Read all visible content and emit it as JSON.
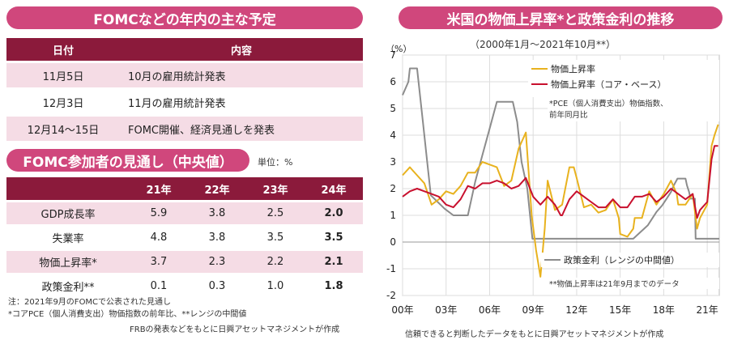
{
  "left": {
    "schedule_title": "FOMCなどの年内の主な予定",
    "schedule_headers": [
      "日付",
      "内容"
    ],
    "schedule_rows": [
      {
        "date": "11月5日",
        "content": "10月の雇用統計発表"
      },
      {
        "date": "12月3日",
        "content": "11月の雇用統計発表"
      },
      {
        "date": "12月14～15日",
        "content": "FOMC開催、経済見通しを発表"
      }
    ],
    "forecast_title": "FOMC参加者の見通し（中央値）",
    "forecast_unit": "単位：%",
    "forecast_headers": [
      "",
      "21年",
      "22年",
      "23年",
      "24年"
    ],
    "forecast_rows": [
      {
        "label": "GDP成長率",
        "values": [
          "5.9",
          "3.8",
          "2.5",
          "2.0"
        ]
      },
      {
        "label": "失業率",
        "values": [
          "4.8",
          "3.8",
          "3.5",
          "3.5"
        ]
      },
      {
        "label": "物価上昇率*",
        "values": [
          "3.7",
          "2.3",
          "2.2",
          "2.1"
        ]
      },
      {
        "label": "政策金利**",
        "values": [
          "0.1",
          "0.3",
          "1.0",
          "1.8"
        ]
      }
    ],
    "note1": "注：2021年9月のFOMCで公表された見通し",
    "note2": "*コアPCE（個人消費支出）物価指数の前年比、**レンジの中間値",
    "source": "FRBの発表などをもとに日興アセットマネジメントが作成"
  },
  "chart_data": {
    "type": "line",
    "title": "米国の物価上昇率*と政策金利の推移",
    "subtitle": "（2000年1月～2021年10月**）",
    "ylabel": "（%）",
    "ylim": [
      -2,
      7
    ],
    "yticks": [
      -2,
      -1,
      0,
      1,
      2,
      3,
      4,
      5,
      6,
      7
    ],
    "xlim": [
      2000,
      2021.83
    ],
    "xticks": [
      {
        "x": 2000,
        "label": "00年"
      },
      {
        "x": 2003,
        "label": "03年"
      },
      {
        "x": 2006,
        "label": "06年"
      },
      {
        "x": 2009,
        "label": "09年"
      },
      {
        "x": 2012,
        "label": "12年"
      },
      {
        "x": 2015,
        "label": "15年"
      },
      {
        "x": 2018,
        "label": "18年"
      },
      {
        "x": 2021,
        "label": "21年"
      }
    ],
    "grid": true,
    "series": [
      {
        "name": "物価上昇率",
        "color": "#e8b21e",
        "points": [
          [
            2000,
            2.5
          ],
          [
            2000.5,
            2.8
          ],
          [
            2001,
            2.5
          ],
          [
            2001.5,
            2.2
          ],
          [
            2002,
            1.4
          ],
          [
            2002.5,
            1.6
          ],
          [
            2003,
            1.9
          ],
          [
            2003.5,
            1.8
          ],
          [
            2004,
            2.1
          ],
          [
            2004.5,
            2.6
          ],
          [
            2005,
            2.6
          ],
          [
            2005.5,
            3.0
          ],
          [
            2006,
            2.9
          ],
          [
            2006.5,
            2.8
          ],
          [
            2007,
            2.1
          ],
          [
            2007.5,
            2.3
          ],
          [
            2008,
            3.5
          ],
          [
            2008.5,
            4.1
          ],
          [
            2008.9,
            1.0
          ],
          [
            2009.2,
            -0.3
          ],
          [
            2009.5,
            -1.3
          ],
          [
            2009.8,
            0.5
          ],
          [
            2010,
            2.3
          ],
          [
            2010.5,
            1.2
          ],
          [
            2011,
            1.4
          ],
          [
            2011.5,
            2.8
          ],
          [
            2011.8,
            2.8
          ],
          [
            2012,
            2.4
          ],
          [
            2012.5,
            1.3
          ],
          [
            2013,
            1.4
          ],
          [
            2013.5,
            1.1
          ],
          [
            2014,
            1.2
          ],
          [
            2014.5,
            1.6
          ],
          [
            2014.9,
            0.9
          ],
          [
            2015,
            0.3
          ],
          [
            2015.5,
            0.2
          ],
          [
            2015.9,
            0.5
          ],
          [
            2016,
            0.9
          ],
          [
            2016.5,
            0.9
          ],
          [
            2017,
            1.9
          ],
          [
            2017.5,
            1.4
          ],
          [
            2018,
            1.8
          ],
          [
            2018.5,
            2.3
          ],
          [
            2018.9,
            1.8
          ],
          [
            2019,
            1.4
          ],
          [
            2019.5,
            1.4
          ],
          [
            2020,
            1.8
          ],
          [
            2020.3,
            0.5
          ],
          [
            2020.5,
            0.9
          ],
          [
            2021,
            1.4
          ],
          [
            2021.3,
            3.6
          ],
          [
            2021.5,
            4.0
          ],
          [
            2021.75,
            4.4
          ]
        ]
      },
      {
        "name": "物価上昇率（コア・ベース）",
        "color": "#c8102e",
        "points": [
          [
            2000,
            1.7
          ],
          [
            2000.5,
            1.9
          ],
          [
            2001,
            2.0
          ],
          [
            2001.5,
            1.9
          ],
          [
            2002,
            1.8
          ],
          [
            2002.5,
            1.7
          ],
          [
            2003,
            1.4
          ],
          [
            2003.5,
            1.3
          ],
          [
            2004,
            1.6
          ],
          [
            2004.5,
            2.1
          ],
          [
            2005,
            2.0
          ],
          [
            2005.5,
            2.2
          ],
          [
            2006,
            2.2
          ],
          [
            2006.5,
            2.3
          ],
          [
            2007,
            2.2
          ],
          [
            2007.5,
            2.0
          ],
          [
            2008,
            2.1
          ],
          [
            2008.5,
            2.4
          ],
          [
            2009,
            1.7
          ],
          [
            2009.5,
            1.4
          ],
          [
            2010,
            1.7
          ],
          [
            2010.5,
            1.4
          ],
          [
            2010.9,
            1.0
          ],
          [
            2011,
            1.0
          ],
          [
            2011.5,
            1.6
          ],
          [
            2012,
            1.9
          ],
          [
            2012.5,
            1.7
          ],
          [
            2013,
            1.5
          ],
          [
            2013.5,
            1.3
          ],
          [
            2014,
            1.3
          ],
          [
            2014.5,
            1.6
          ],
          [
            2015,
            1.3
          ],
          [
            2015.5,
            1.3
          ],
          [
            2016,
            1.7
          ],
          [
            2016.5,
            1.7
          ],
          [
            2017,
            1.8
          ],
          [
            2017.5,
            1.5
          ],
          [
            2018,
            1.7
          ],
          [
            2018.5,
            2.0
          ],
          [
            2019,
            1.8
          ],
          [
            2019.5,
            1.6
          ],
          [
            2020,
            1.8
          ],
          [
            2020.3,
            0.9
          ],
          [
            2020.5,
            1.2
          ],
          [
            2021,
            1.5
          ],
          [
            2021.3,
            3.1
          ],
          [
            2021.5,
            3.6
          ],
          [
            2021.75,
            3.6
          ]
        ]
      },
      {
        "name": "政策金利（レンジの中間値）",
        "color": "#8c8c8c",
        "points": [
          [
            2000,
            5.5
          ],
          [
            2000.4,
            6.0
          ],
          [
            2000.5,
            6.5
          ],
          [
            2001,
            6.5
          ],
          [
            2001.4,
            4.5
          ],
          [
            2001.7,
            3.0
          ],
          [
            2001.95,
            1.75
          ],
          [
            2002.9,
            1.25
          ],
          [
            2003.5,
            1.0
          ],
          [
            2004.5,
            1.0
          ],
          [
            2005,
            2.25
          ],
          [
            2005.5,
            3.25
          ],
          [
            2006,
            4.25
          ],
          [
            2006.5,
            5.25
          ],
          [
            2007.6,
            5.25
          ],
          [
            2007.9,
            4.5
          ],
          [
            2008.2,
            3.0
          ],
          [
            2008.6,
            2.0
          ],
          [
            2008.95,
            0.125
          ],
          [
            2015.9,
            0.125
          ],
          [
            2016.9,
            0.625
          ],
          [
            2017.2,
            0.875
          ],
          [
            2017.5,
            1.125
          ],
          [
            2017.9,
            1.375
          ],
          [
            2018.2,
            1.625
          ],
          [
            2018.5,
            1.875
          ],
          [
            2018.7,
            2.125
          ],
          [
            2018.95,
            2.375
          ],
          [
            2019.5,
            2.375
          ],
          [
            2019.6,
            2.125
          ],
          [
            2019.75,
            1.875
          ],
          [
            2019.85,
            1.625
          ],
          [
            2020.15,
            1.625
          ],
          [
            2020.2,
            0.125
          ],
          [
            2021.83,
            0.125
          ]
        ]
      }
    ],
    "annotation1": "*PCE（個人消費支出）物価指数、",
    "annotation2": "前年同月比",
    "annotation3": "**物価上昇率は21年9月までのデータ",
    "source": "信頼できると判断したデータをもとに日興アセットマネジメントが作成"
  }
}
